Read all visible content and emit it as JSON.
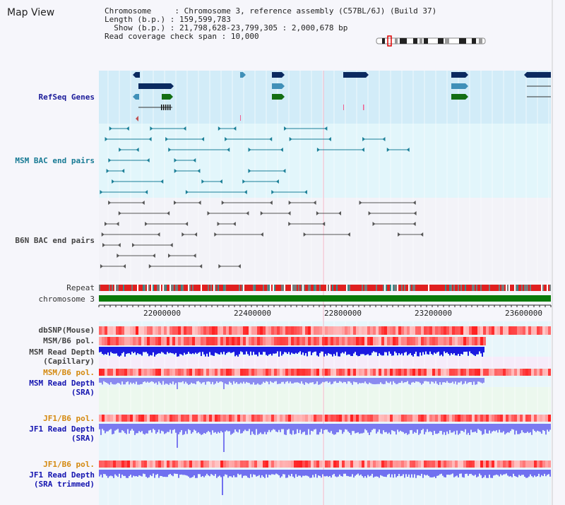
{
  "title": "Map View",
  "info": {
    "chromosome_key": "Chromosome",
    "chromosome_val": "Chromosome 3, reference assembly (C57BL/6J) (Build 37)",
    "length_key": "Length (b.p.)",
    "length_val": "159,599,783",
    "show_key": "Show (b.p.)",
    "show_val": "21,798,628-23,799,305 : 2,000,678 bp",
    "coverage_key": "Read coverage check span",
    "coverage_val": "10,000"
  },
  "tracks": {
    "refseq": "RefSeq Genes",
    "msm_bac": "MSM BAC end pairs",
    "b6n_bac": "B6N BAC end pairs",
    "repeat": "Repeat",
    "chromosome": "chromosome 3",
    "dbsnp": "dbSNP(Mouse)",
    "msm_b6_pol_1": "MSM/B6 pol.",
    "msm_depth_cap_1": "MSM Read Depth",
    "msm_depth_cap_2": "(Capillary)",
    "msm_b6_pol_2": "MSM/B6 pol.",
    "msm_depth_sra_1": "MSM Read Depth",
    "msm_depth_sra_2": "(SRA)",
    "jf1_b6_pol_1": "JF1/B6 pol.",
    "jf1_depth_sra_1": "JF1 Read Depth",
    "jf1_depth_sra_2": "(SRA)",
    "jf1_b6_pol_2": "JF1/B6 pol.",
    "jf1_depth_trim_1": "JF1 Read Depth",
    "jf1_depth_trim_2": "(SRA trimmed)"
  },
  "axis": {
    "ticks": [
      "22000000",
      "22400000",
      "22800000",
      "23200000",
      "23600000"
    ]
  },
  "colors": {
    "refseq_bg": "#d2ecf8",
    "msm_bg": "#e2f6fb",
    "b6n_bg": "#f3f3f8",
    "chrom_green": "#0a7a0a",
    "gene_navy": "#0b2a60",
    "gene_teal": "#4090b8",
    "gene_green": "#136e13",
    "depth_blue": "#2020e0"
  }
}
